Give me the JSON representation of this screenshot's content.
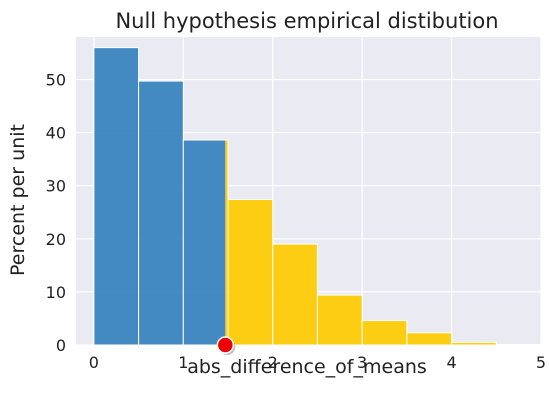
{
  "chart_data": {
    "type": "bar",
    "title": "Null hypothesis empirical distibution",
    "xlabel": "abs_difference_of_means",
    "ylabel": "Percent per unit",
    "xlim": [
      -0.2,
      5.0
    ],
    "ylim": [
      0,
      58
    ],
    "xticks": [
      "0",
      "1",
      "2",
      "3",
      "4",
      "5"
    ],
    "yticks": [
      "0",
      "10",
      "20",
      "30",
      "40",
      "50"
    ],
    "grid": true,
    "colors": {
      "background": "#eaeaf2",
      "grid": "#ffffff",
      "below_observed": "#3a85c0",
      "above_observed": "#fdcb05",
      "bar_edge": "#ffffff",
      "marker": "#ee0000"
    },
    "bins": [
      {
        "x0": 0.0,
        "x1": 0.5,
        "value": 56.0
      },
      {
        "x0": 0.5,
        "x1": 1.0,
        "value": 49.7
      },
      {
        "x0": 1.0,
        "x1": 1.5,
        "value": 38.6
      },
      {
        "x0": 1.5,
        "x1": 2.0,
        "value": 27.4
      },
      {
        "x0": 2.0,
        "x1": 2.5,
        "value": 19.0
      },
      {
        "x0": 2.5,
        "x1": 3.0,
        "value": 9.4
      },
      {
        "x0": 3.0,
        "x1": 3.5,
        "value": 4.6
      },
      {
        "x0": 3.5,
        "x1": 4.0,
        "value": 2.3
      },
      {
        "x0": 4.0,
        "x1": 4.5,
        "value": 0.5
      },
      {
        "x0": 4.5,
        "x1": 5.0,
        "value": 0.1
      }
    ],
    "observed_statistic": 1.47
  }
}
